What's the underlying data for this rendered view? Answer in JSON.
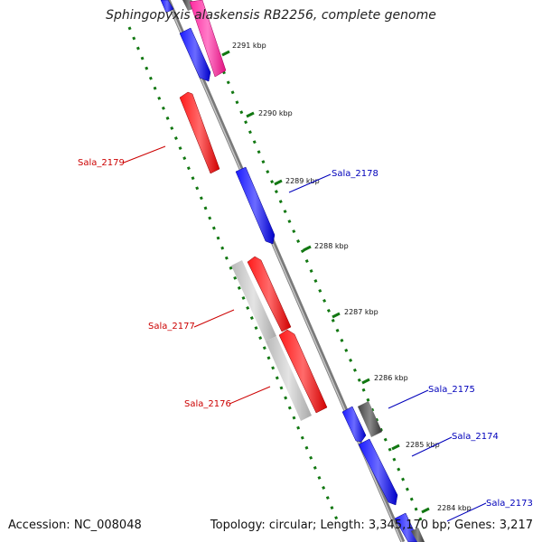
{
  "title": "Sphingopyxis alaskensis RB2256, complete genome",
  "accession": "Accession: NC_008048",
  "summary": "Topology: circular; Length: 3,345,170 bp; Genes: 3,217",
  "scale_labels": [
    "2291 kbp",
    "2290 kbp",
    "2289 kbp",
    "2288 kbp",
    "2287 kbp",
    "2286 kbp",
    "2285 kbp",
    "2284 kbp"
  ],
  "gene_labels": {
    "sala_2179": "Sala_2179",
    "sala_2178": "Sala_2178",
    "sala_2177": "Sala_2177",
    "sala_2176": "Sala_2176",
    "sala_2175": "Sala_2175",
    "sala_2174": "Sala_2174",
    "sala_2173": "Sala_2173"
  },
  "colors": {
    "forward_gene": "#0000ee",
    "reverse_gene": "#ee0000",
    "pink_gene": "#ff1493",
    "gray_feature": "#c0c0c0",
    "dark_gray_feature": "#555555",
    "backbone": "#888888",
    "ruler": "#117711",
    "reverse_label": "#cc0000",
    "forward_label": "#0000bb"
  }
}
